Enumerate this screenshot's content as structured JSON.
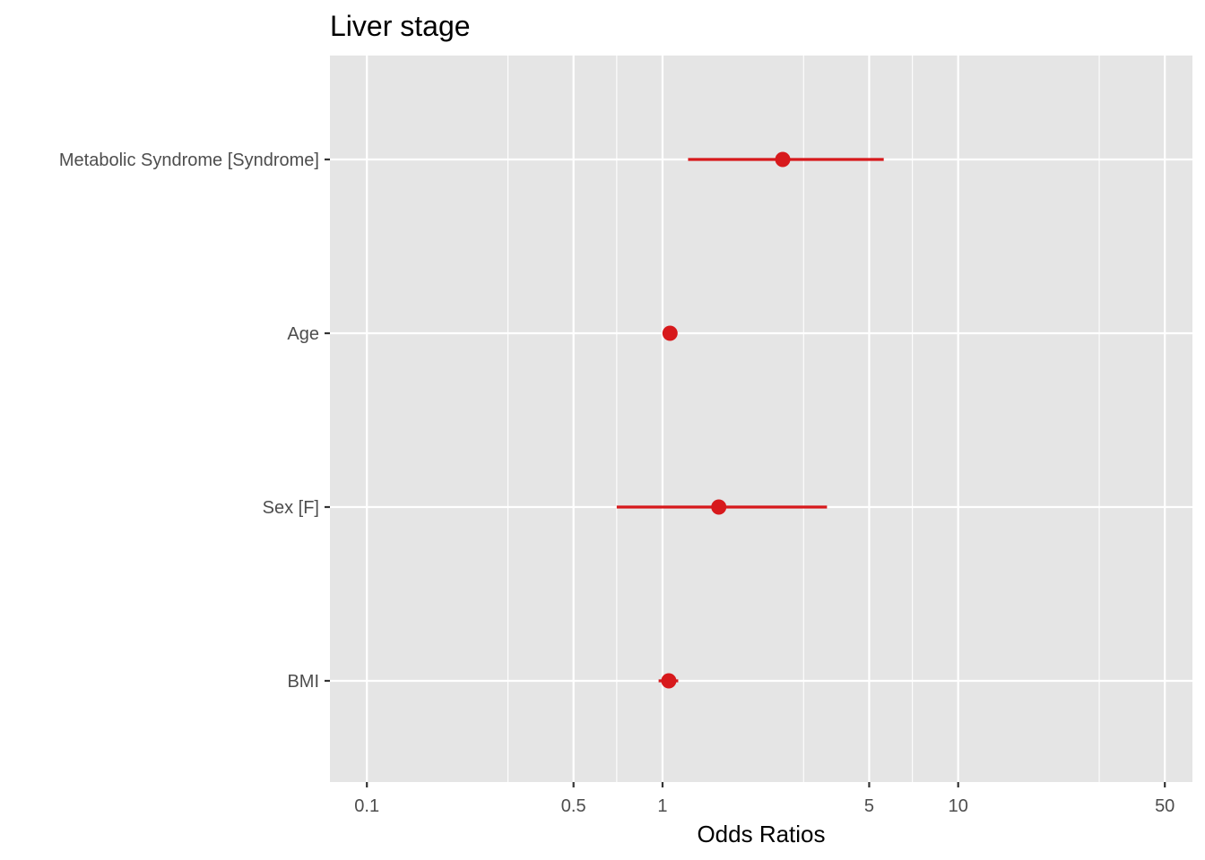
{
  "chart_data": {
    "type": "scatter",
    "subtype": "forest-plot",
    "title": "Liver stage",
    "xlabel": "Odds Ratios",
    "ylabel": "",
    "x_scale": "log10",
    "xlim": [
      0.075,
      62
    ],
    "x_ticks": [
      {
        "value": 0.1,
        "label": "0.1"
      },
      {
        "value": 0.5,
        "label": "0.5"
      },
      {
        "value": 1,
        "label": "1"
      },
      {
        "value": 5,
        "label": "5"
      },
      {
        "value": 10,
        "label": "10"
      },
      {
        "value": 50,
        "label": "50"
      }
    ],
    "x_minor_gridlines": [
      0.3,
      0.7,
      3,
      7,
      30
    ],
    "grid": true,
    "legend": "none",
    "colors": {
      "panel": "#e5e5e5",
      "grid": "#ffffff",
      "point": "#d7191c",
      "tick_text": "#4d4d4d"
    },
    "categories": [
      "Metabolic Syndrome [Syndrome]",
      "Age",
      "Sex [F]",
      "BMI"
    ],
    "series": [
      {
        "points": [
          {
            "term": "Metabolic Syndrome [Syndrome]",
            "estimate": 2.55,
            "conf_low": 1.22,
            "conf_high": 5.6
          },
          {
            "term": "Age",
            "estimate": 1.06,
            "conf_low": 1.02,
            "conf_high": 1.1
          },
          {
            "term": "Sex [F]",
            "estimate": 1.55,
            "conf_low": 0.7,
            "conf_high": 3.6
          },
          {
            "term": "BMI",
            "estimate": 1.05,
            "conf_low": 0.97,
            "conf_high": 1.13
          }
        ]
      }
    ]
  }
}
